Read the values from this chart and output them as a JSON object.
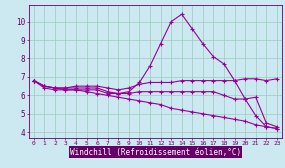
{
  "x_values": [
    0,
    1,
    2,
    3,
    4,
    5,
    6,
    7,
    8,
    9,
    10,
    11,
    12,
    13,
    14,
    15,
    16,
    17,
    18,
    19,
    20,
    21,
    22,
    23
  ],
  "line1": [
    6.8,
    6.5,
    6.4,
    6.4,
    6.5,
    6.5,
    6.5,
    6.4,
    6.3,
    6.4,
    6.6,
    6.7,
    6.7,
    6.7,
    6.8,
    6.8,
    6.8,
    6.8,
    6.8,
    6.8,
    6.9,
    6.9,
    6.8,
    6.9
  ],
  "line2": [
    6.8,
    6.5,
    6.4,
    6.4,
    6.4,
    6.4,
    6.4,
    6.2,
    6.1,
    6.2,
    6.7,
    7.6,
    8.8,
    10.0,
    10.4,
    9.6,
    8.8,
    8.1,
    7.7,
    6.8,
    5.8,
    4.9,
    4.3,
    4.2
  ],
  "line3": [
    6.8,
    6.5,
    6.4,
    6.3,
    6.3,
    6.3,
    6.3,
    6.1,
    6.1,
    6.1,
    6.2,
    6.2,
    6.2,
    6.2,
    6.2,
    6.2,
    6.2,
    6.2,
    6.0,
    5.8,
    5.8,
    5.9,
    4.5,
    4.3
  ],
  "line4": [
    6.8,
    6.4,
    6.3,
    6.3,
    6.3,
    6.2,
    6.1,
    6.0,
    5.9,
    5.8,
    5.7,
    5.6,
    5.5,
    5.3,
    5.2,
    5.1,
    5.0,
    4.9,
    4.8,
    4.7,
    4.6,
    4.4,
    4.3,
    4.2
  ],
  "xlabel": "Windchill (Refroidissement éolien,°C)",
  "yticks": [
    4,
    5,
    6,
    7,
    8,
    9,
    10
  ],
  "xlim": [
    -0.5,
    23.5
  ],
  "ylim": [
    3.7,
    10.9
  ],
  "bg_color": "#cce8f0",
  "line_color": "#990099",
  "grid_color": "#99ccbb",
  "tick_label_color": "#660066",
  "xlabel_color": "#ffffff",
  "xlabel_bg": "#660066",
  "marker": "+",
  "linewidth": 0.8,
  "markersize": 3.5,
  "markeredgewidth": 0.8
}
